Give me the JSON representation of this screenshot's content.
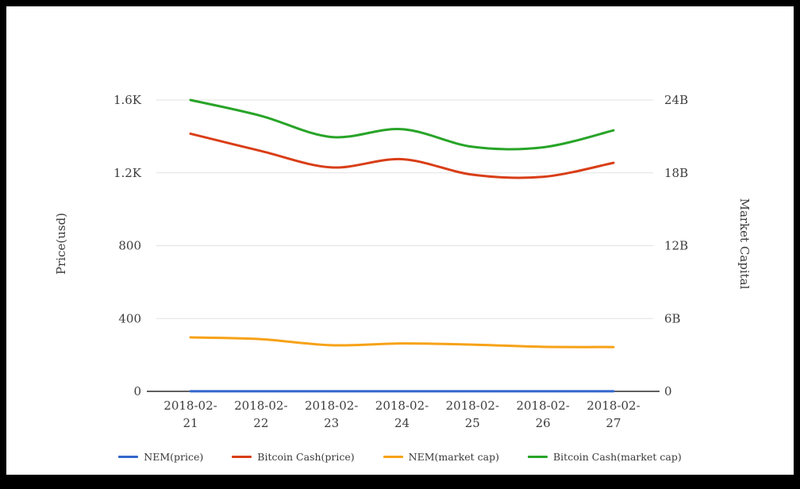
{
  "chart": {
    "left_axis_title": "Price(usd)",
    "right_axis_title": "Market Capital",
    "text_color": "#3d3d3d",
    "grid_color": "#e2e2e2",
    "axis_line_color": "#2b2b2b",
    "background_color": "#ffffff",
    "frame_color": "#000000"
  },
  "chart_data": {
    "type": "line",
    "x": [
      "2018-02-21",
      "2018-02-22",
      "2018-02-23",
      "2018-02-24",
      "2018-02-25",
      "2018-02-26",
      "2018-02-27"
    ],
    "series": [
      {
        "name": "NEM(price)",
        "axis": "left",
        "color": "#3366cc",
        "values": [
          0.35,
          0.34,
          0.31,
          0.33,
          0.3,
          0.29,
          0.3
        ]
      },
      {
        "name": "Bitcoin Cash(price)",
        "axis": "left",
        "color": "#d93e17",
        "values": [
          1415,
          1320,
          1230,
          1275,
          1190,
          1178,
          1255
        ]
      },
      {
        "name": "NEM(market cap)",
        "axis": "right",
        "color": "#f7a217",
        "values": [
          4.45,
          4.3,
          3.8,
          3.95,
          3.85,
          3.67,
          3.65
        ]
      },
      {
        "name": "Bitcoin Cash(market cap)",
        "axis": "right",
        "color": "#28a428",
        "values": [
          24.0,
          22.7,
          20.95,
          21.6,
          20.15,
          20.1,
          21.5
        ]
      }
    ],
    "left_ylim": [
      0,
      1600
    ],
    "right_ylim": [
      0,
      24
    ],
    "left_ticks": [
      {
        "value": 0,
        "label": "0"
      },
      {
        "value": 400,
        "label": "400"
      },
      {
        "value": 800,
        "label": "800"
      },
      {
        "value": 1200,
        "label": "1.2K"
      },
      {
        "value": 1600,
        "label": "1.6K"
      }
    ],
    "right_ticks": [
      {
        "value": 0,
        "label": "0"
      },
      {
        "value": 6,
        "label": "6B"
      },
      {
        "value": 12,
        "label": "12B"
      },
      {
        "value": 18,
        "label": "18B"
      },
      {
        "value": 24,
        "label": "24B"
      }
    ],
    "title": "",
    "xlabel": "",
    "ylabel_left": "Price(usd)",
    "ylabel_right": "Market Capital",
    "grid": true,
    "legend_position": "bottom"
  }
}
